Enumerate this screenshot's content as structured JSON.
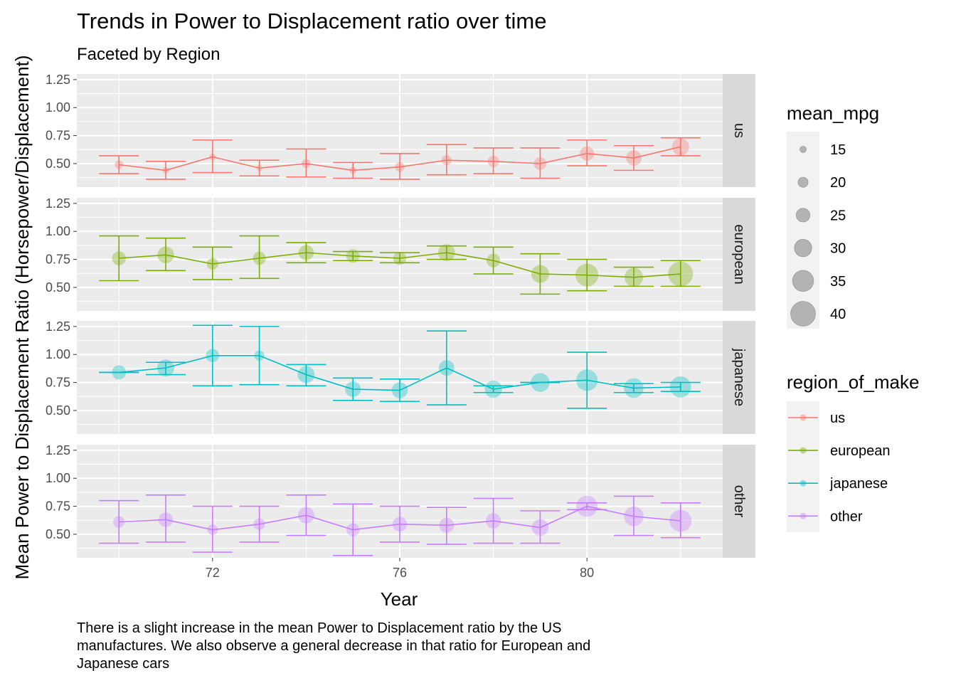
{
  "chart_data": {
    "type": "scatter",
    "title": "Trends in Power to Displacement ratio over time",
    "subtitle": "Faceted by Region",
    "xlabel": "Year",
    "ylabel": "Mean Power to Displacement Ratio (Horsepower/Displacement)",
    "caption_lines": [
      "There is a slight increase in the mean Power to Displacement ratio by the US",
      "manufactures. We also observe a general decrease in that ratio for European and",
      "Japanese cars"
    ],
    "x_ticks": [
      72,
      76,
      80
    ],
    "x_range": [
      69.1,
      82.9
    ],
    "y_ticks": [
      0.5,
      0.75,
      1.0,
      1.25
    ],
    "y_tick_labels": [
      "0.50",
      "0.75",
      "1.00",
      "1.25"
    ],
    "y_range": [
      0.29,
      1.3
    ],
    "facets": [
      {
        "name": "us",
        "color": "#F8766D",
        "x": [
          70,
          71,
          72,
          73,
          74,
          75,
          76,
          77,
          78,
          79,
          80,
          81,
          82
        ],
        "mean": [
          0.49,
          0.44,
          0.56,
          0.46,
          0.5,
          0.44,
          0.47,
          0.53,
          0.52,
          0.5,
          0.59,
          0.55,
          0.65
        ],
        "lower": [
          0.41,
          0.36,
          0.42,
          0.39,
          0.38,
          0.37,
          0.36,
          0.4,
          0.41,
          0.37,
          0.48,
          0.44,
          0.57
        ],
        "upper": [
          0.57,
          0.52,
          0.71,
          0.53,
          0.63,
          0.51,
          0.59,
          0.67,
          0.64,
          0.64,
          0.71,
          0.66,
          0.73
        ],
        "mean_mpg": [
          17.7,
          15.3,
          15.0,
          14.3,
          18.4,
          16.0,
          19.2,
          20.0,
          21.8,
          23.6,
          25.6,
          27.1,
          29.5
        ]
      },
      {
        "name": "european",
        "color": "#7CAE00",
        "x": [
          70,
          71,
          72,
          73,
          74,
          75,
          76,
          77,
          78,
          79,
          80,
          81,
          82
        ],
        "mean": [
          0.76,
          0.79,
          0.71,
          0.76,
          0.81,
          0.78,
          0.76,
          0.81,
          0.74,
          0.62,
          0.61,
          0.59,
          0.62
        ],
        "lower": [
          0.56,
          0.65,
          0.57,
          0.58,
          0.72,
          0.74,
          0.72,
          0.75,
          0.62,
          0.44,
          0.47,
          0.51,
          0.51
        ],
        "upper": [
          0.96,
          0.94,
          0.86,
          0.96,
          0.9,
          0.82,
          0.81,
          0.87,
          0.86,
          0.8,
          0.75,
          0.68,
          0.74
        ],
        "mean_mpg": [
          25.2,
          28.8,
          22.0,
          24.0,
          27.0,
          24.5,
          24.3,
          29.3,
          24.9,
          30.5,
          37.3,
          31.6,
          40.0
        ]
      },
      {
        "name": "japanese",
        "color": "#00BFC4",
        "x": [
          70,
          71,
          72,
          73,
          74,
          75,
          76,
          77,
          78,
          79,
          80,
          81,
          82
        ],
        "mean": [
          0.84,
          0.88,
          0.99,
          0.99,
          0.82,
          0.69,
          0.68,
          0.88,
          0.69,
          0.75,
          0.77,
          0.7,
          0.71
        ],
        "lower": [
          0.84,
          0.82,
          0.72,
          0.73,
          0.72,
          0.59,
          0.58,
          0.55,
          0.66,
          0.75,
          0.52,
          0.66,
          0.67
        ],
        "upper": [
          0.84,
          0.93,
          1.26,
          1.25,
          0.91,
          0.79,
          0.78,
          1.21,
          0.72,
          0.75,
          1.02,
          0.74,
          0.75
        ],
        "mean_mpg": [
          25.5,
          29.5,
          24.2,
          20.0,
          29.3,
          27.5,
          28.0,
          27.4,
          29.7,
          31.8,
          35.4,
          32.9,
          34.9
        ]
      },
      {
        "name": "other",
        "color": "#C77CFF",
        "x": [
          70,
          71,
          72,
          73,
          74,
          75,
          76,
          77,
          78,
          79,
          80,
          81,
          82
        ],
        "mean": [
          0.61,
          0.63,
          0.54,
          0.59,
          0.67,
          0.54,
          0.59,
          0.58,
          0.62,
          0.56,
          0.75,
          0.66,
          0.62
        ],
        "lower": [
          0.42,
          0.43,
          0.34,
          0.43,
          0.49,
          0.31,
          0.43,
          0.41,
          0.42,
          0.42,
          0.72,
          0.49,
          0.47
        ],
        "upper": [
          0.8,
          0.85,
          0.75,
          0.75,
          0.85,
          0.77,
          0.75,
          0.74,
          0.82,
          0.71,
          0.78,
          0.84,
          0.78
        ],
        "mean_mpg": [
          22.0,
          26.0,
          20.5,
          22.0,
          28.5,
          24.0,
          26.0,
          26.5,
          27.0,
          29.0,
          35.0,
          33.0,
          36.0
        ]
      }
    ],
    "legend_size": {
      "title": "mean_mpg",
      "values": [
        15,
        20,
        25,
        30,
        35,
        40
      ],
      "labels": [
        "15",
        "20",
        "25",
        "30",
        "35",
        "40"
      ],
      "range": [
        14,
        41
      ]
    },
    "legend_color": {
      "title": "region_of_make",
      "labels": [
        "us",
        "european",
        "japanese",
        "other"
      ],
      "colors": [
        "#F8766D",
        "#7CAE00",
        "#00BFC4",
        "#C77CFF"
      ]
    },
    "panel_background": "#EBEBEB",
    "strip_background": "#D9D9D9",
    "grid": true,
    "legend_position": "right"
  }
}
